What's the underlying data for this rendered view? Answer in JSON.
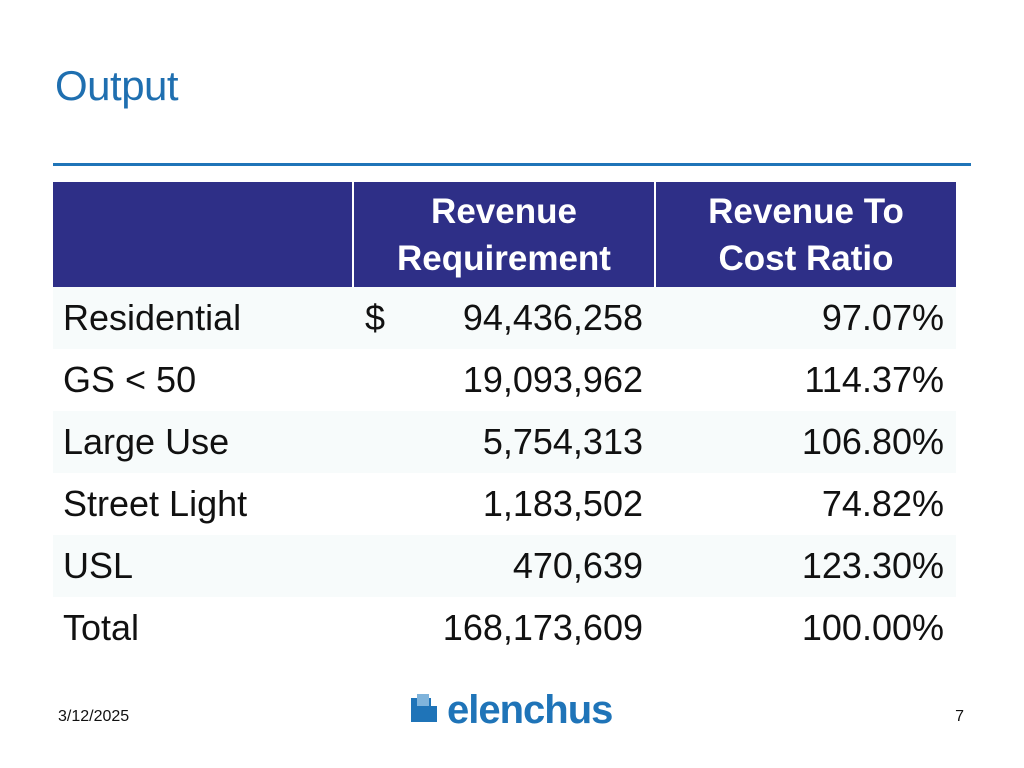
{
  "slide": {
    "title": "Output",
    "date": "3/12/2025",
    "page_number": "7",
    "logo_text": "elenchus"
  },
  "table": {
    "headers": {
      "label": "",
      "revenue_line1": "Revenue",
      "revenue_line2": "Requirement",
      "ratio_line1": "Revenue To",
      "ratio_line2": "Cost Ratio"
    },
    "currency_symbol": "$",
    "rows": [
      {
        "label": "Residential",
        "revenue": "94,436,258",
        "ratio": "97.07%"
      },
      {
        "label": "GS < 50",
        "revenue": "19,093,962",
        "ratio": "114.37%"
      },
      {
        "label": "Large Use",
        "revenue": "5,754,313",
        "ratio": "106.80%"
      },
      {
        "label": "Street Light",
        "revenue": "1,183,502",
        "ratio": "74.82%"
      },
      {
        "label": "USL",
        "revenue": "470,639",
        "ratio": "123.30%"
      },
      {
        "label": "Total",
        "revenue": "168,173,609",
        "ratio": "100.00%"
      }
    ]
  },
  "colors": {
    "title": "#1f6fb0",
    "header_bg": "#2e2f87",
    "logo_blue": "#1f74b8"
  }
}
